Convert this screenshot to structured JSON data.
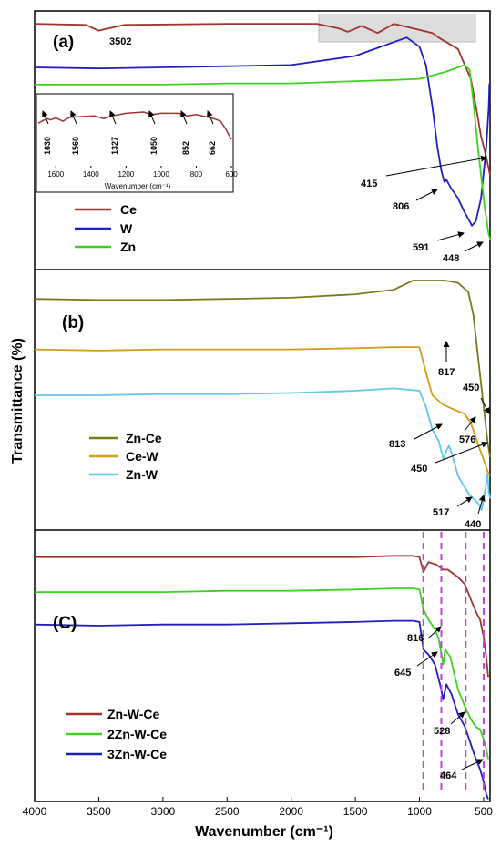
{
  "chart_data": {
    "type": "line",
    "xlabel": "Wavenumber (cm⁻¹)",
    "ylabel": "Transmittance (%)",
    "xlim": [
      4000,
      450
    ],
    "x_ticks": [
      "4000",
      "3500",
      "3000",
      "2500",
      "2000",
      "1500",
      "1000",
      "500"
    ],
    "grid": false,
    "panels": [
      {
        "label": "(a)",
        "legend_position": "left",
        "series": [
          {
            "name": "Ce",
            "color": "#a0342a",
            "points": [
              [
                4000,
                0.96
              ],
              [
                3600,
                0.955
              ],
              [
                3502,
                0.93
              ],
              [
                3300,
                0.955
              ],
              [
                2500,
                0.96
              ],
              [
                1800,
                0.96
              ],
              [
                1630,
                0.94
              ],
              [
                1560,
                0.925
              ],
              [
                1450,
                0.95
              ],
              [
                1327,
                0.92
              ],
              [
                1200,
                0.96
              ],
              [
                1050,
                0.94
              ],
              [
                900,
                0.92
              ],
              [
                852,
                0.9
              ],
              [
                700,
                0.85
              ],
              [
                662,
                0.8
              ],
              [
                600,
                0.72
              ],
              [
                560,
                0.6
              ],
              [
                520,
                0.47
              ],
              [
                480,
                0.38
              ],
              [
                450,
                0.3
              ]
            ]
          },
          {
            "name": "W",
            "color": "#1f1fbf",
            "points": [
              [
                4000,
                0.77
              ],
              [
                3500,
                0.765
              ],
              [
                3000,
                0.77
              ],
              [
                2500,
                0.775
              ],
              [
                2000,
                0.78
              ],
              [
                1500,
                0.82
              ],
              [
                1200,
                0.88
              ],
              [
                1100,
                0.9
              ],
              [
                1000,
                0.86
              ],
              [
                950,
                0.78
              ],
              [
                900,
                0.6
              ],
              [
                860,
                0.42
              ],
              [
                830,
                0.32
              ],
              [
                806,
                0.27
              ],
              [
                790,
                0.28
              ],
              [
                750,
                0.24
              ],
              [
                700,
                0.2
              ],
              [
                650,
                0.14
              ],
              [
                600,
                0.09
              ],
              [
                591,
                0.08
              ],
              [
                560,
                0.1
              ],
              [
                520,
                0.2
              ],
              [
                480,
                0.42
              ],
              [
                460,
                0.6
              ],
              [
                455,
                0.7
              ]
            ]
          },
          {
            "name": "Zn",
            "color": "#3ed122",
            "points": [
              [
                4000,
                0.695
              ],
              [
                3500,
                0.695
              ],
              [
                3000,
                0.695
              ],
              [
                2500,
                0.7
              ],
              [
                2000,
                0.7
              ],
              [
                1500,
                0.71
              ],
              [
                1200,
                0.715
              ],
              [
                1000,
                0.72
              ],
              [
                800,
                0.75
              ],
              [
                700,
                0.77
              ],
              [
                650,
                0.78
              ],
              [
                610,
                0.76
              ],
              [
                580,
                0.62
              ],
              [
                550,
                0.45
              ],
              [
                520,
                0.3
              ],
              [
                490,
                0.15
              ],
              [
                460,
                0.04
              ],
              [
                448,
                0.02
              ]
            ]
          }
        ],
        "peak_labels": [
          "3502",
          "415",
          "806",
          "591",
          "448"
        ],
        "inset": {
          "xlim": [
            1700,
            600
          ],
          "x_ticks": [
            "1600",
            "1400",
            "1200",
            "1000",
            "800",
            "600"
          ],
          "xlabel": "Wavenumber (cm⁻¹)",
          "peak_labels": [
            "1630",
            "1560",
            "1327",
            "1050",
            "852",
            "662"
          ],
          "points": [
            [
              1700,
              0.65
            ],
            [
              1650,
              0.72
            ],
            [
              1630,
              0.7
            ],
            [
              1600,
              0.73
            ],
            [
              1560,
              0.68
            ],
            [
              1520,
              0.74
            ],
            [
              1450,
              0.75
            ],
            [
              1380,
              0.76
            ],
            [
              1327,
              0.72
            ],
            [
              1280,
              0.76
            ],
            [
              1200,
              0.8
            ],
            [
              1100,
              0.82
            ],
            [
              1050,
              0.78
            ],
            [
              1000,
              0.8
            ],
            [
              900,
              0.8
            ],
            [
              852,
              0.76
            ],
            [
              800,
              0.78
            ],
            [
              700,
              0.72
            ],
            [
              662,
              0.68
            ],
            [
              630,
              0.55
            ],
            [
              600,
              0.4
            ]
          ]
        }
      },
      {
        "label": "(b)",
        "legend_position": "left",
        "series": [
          {
            "name": "Zn-Ce",
            "color": "#7a7a1a",
            "points": [
              [
                4000,
                0.92
              ],
              [
                3500,
                0.915
              ],
              [
                3000,
                0.915
              ],
              [
                2500,
                0.92
              ],
              [
                2000,
                0.925
              ],
              [
                1500,
                0.94
              ],
              [
                1200,
                0.96
              ],
              [
                1050,
                1.0
              ],
              [
                800,
                1.0
              ],
              [
                700,
                0.99
              ],
              [
                620,
                0.95
              ],
              [
                580,
                0.85
              ],
              [
                540,
                0.65
              ],
              [
                500,
                0.45
              ],
              [
                470,
                0.3
              ],
              [
                450,
                0.23
              ]
            ]
          },
          {
            "name": "Ce-W",
            "color": "#d49a1a",
            "points": [
              [
                4000,
                0.7
              ],
              [
                3500,
                0.695
              ],
              [
                3000,
                0.7
              ],
              [
                2500,
                0.7
              ],
              [
                2000,
                0.7
              ],
              [
                1500,
                0.705
              ],
              [
                1200,
                0.71
              ],
              [
                1000,
                0.71
              ],
              [
                950,
                0.6
              ],
              [
                900,
                0.5
              ],
              [
                860,
                0.48
              ],
              [
                817,
                0.46
              ],
              [
                780,
                0.45
              ],
              [
                700,
                0.43
              ],
              [
                650,
                0.42
              ],
              [
                600,
                0.38
              ],
              [
                576,
                0.34
              ],
              [
                540,
                0.28
              ],
              [
                500,
                0.22
              ],
              [
                470,
                0.17
              ],
              [
                450,
                0.15
              ]
            ]
          },
          {
            "name": "Zn-W",
            "color": "#5ec8f0",
            "points": [
              [
                4000,
                0.5
              ],
              [
                3500,
                0.5
              ],
              [
                3000,
                0.505
              ],
              [
                2500,
                0.505
              ],
              [
                2000,
                0.51
              ],
              [
                1500,
                0.52
              ],
              [
                1200,
                0.53
              ],
              [
                1000,
                0.52
              ],
              [
                950,
                0.45
              ],
              [
                900,
                0.35
              ],
              [
                850,
                0.3
              ],
              [
                813,
                0.22
              ],
              [
                790,
                0.26
              ],
              [
                770,
                0.28
              ],
              [
                750,
                0.25
              ],
              [
                700,
                0.15
              ],
              [
                650,
                0.1
              ],
              [
                600,
                0.06
              ],
              [
                560,
                0.04
              ],
              [
                530,
                0.02
              ],
              [
                517,
                0.0
              ],
              [
                495,
                0.06
              ],
              [
                480,
                0.12
              ],
              [
                470,
                0.16
              ],
              [
                460,
                0.08
              ],
              [
                450,
                0.05
              ]
            ]
          }
        ],
        "peak_labels": [
          "817",
          "450",
          "813",
          "576",
          "450",
          "517",
          "440"
        ]
      },
      {
        "label": "(C)",
        "legend_position": "left",
        "series": [
          {
            "name": "Zn-W-Ce",
            "color": "#a0342a",
            "points": [
              [
                4000,
                0.95
              ],
              [
                3500,
                0.95
              ],
              [
                3000,
                0.95
              ],
              [
                2500,
                0.95
              ],
              [
                2000,
                0.95
              ],
              [
                1500,
                0.95
              ],
              [
                1200,
                0.955
              ],
              [
                1050,
                0.955
              ],
              [
                1000,
                0.95
              ],
              [
                970,
                0.89
              ],
              [
                930,
                0.93
              ],
              [
                870,
                0.92
              ],
              [
                816,
                0.9
              ],
              [
                780,
                0.9
              ],
              [
                700,
                0.87
              ],
              [
                645,
                0.84
              ],
              [
                600,
                0.78
              ],
              [
                550,
                0.72
              ],
              [
                528,
                0.7
              ],
              [
                500,
                0.63
              ],
              [
                480,
                0.55
              ],
              [
                464,
                0.47
              ]
            ]
          },
          {
            "name": "2Zn-W-Ce",
            "color": "#3ed122",
            "points": [
              [
                4000,
                0.81
              ],
              [
                3500,
                0.81
              ],
              [
                3000,
                0.81
              ],
              [
                2500,
                0.815
              ],
              [
                2000,
                0.815
              ],
              [
                1500,
                0.82
              ],
              [
                1200,
                0.825
              ],
              [
                1050,
                0.825
              ],
              [
                1000,
                0.82
              ],
              [
                970,
                0.74
              ],
              [
                930,
                0.7
              ],
              [
                880,
                0.66
              ],
              [
                850,
                0.62
              ],
              [
                816,
                0.52
              ],
              [
                800,
                0.58
              ],
              [
                760,
                0.55
              ],
              [
                700,
                0.42
              ],
              [
                645,
                0.35
              ],
              [
                600,
                0.3
              ],
              [
                560,
                0.27
              ],
              [
                528,
                0.26
              ],
              [
                500,
                0.22
              ],
              [
                480,
                0.18
              ],
              [
                464,
                0.14
              ]
            ]
          },
          {
            "name": "3Zn-W-Ce",
            "color": "#1f1fbf",
            "points": [
              [
                4000,
                0.68
              ],
              [
                3500,
                0.675
              ],
              [
                3000,
                0.68
              ],
              [
                2500,
                0.68
              ],
              [
                2000,
                0.685
              ],
              [
                1500,
                0.69
              ],
              [
                1200,
                0.695
              ],
              [
                1050,
                0.695
              ],
              [
                1000,
                0.69
              ],
              [
                970,
                0.58
              ],
              [
                930,
                0.56
              ],
              [
                880,
                0.52
              ],
              [
                840,
                0.44
              ],
              [
                816,
                0.38
              ],
              [
                790,
                0.44
              ],
              [
                750,
                0.4
              ],
              [
                700,
                0.32
              ],
              [
                645,
                0.27
              ],
              [
                600,
                0.2
              ],
              [
                560,
                0.14
              ],
              [
                528,
                0.1
              ],
              [
                500,
                0.05
              ],
              [
                480,
                0.0
              ],
              [
                464,
                -0.02
              ]
            ]
          }
        ],
        "peak_labels": [
          "816",
          "645",
          "528",
          "464"
        ],
        "dashed_marker_color": "#c040e0"
      }
    ]
  }
}
